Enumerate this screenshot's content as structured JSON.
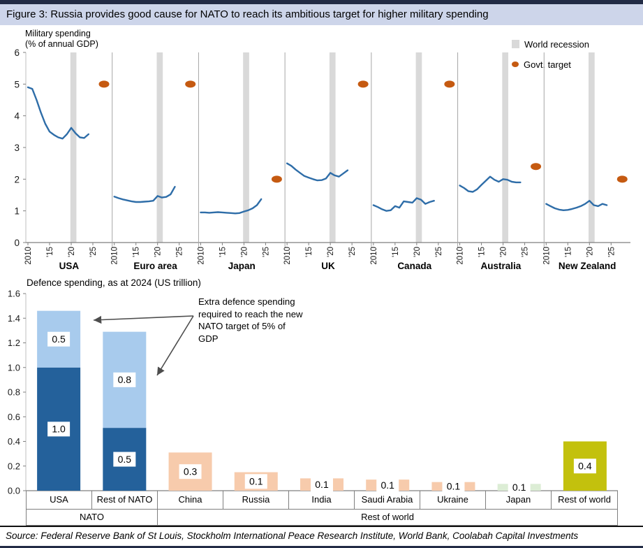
{
  "title": "Figure 3: Russia provides good cause for NATO to reach its ambitious target for higher military spending",
  "source": "Source: Federal Reserve Bank of St Louis, Stockholm International Peace Research Institute, World Bank, Coolabah Capital Investments",
  "top_chart": {
    "axis_title_line1": "Military spending",
    "axis_title_line2": "(% of annual GDP)",
    "legend_recession": "World recession",
    "legend_target": "Govt. target"
  },
  "bottom_chart": {
    "title": "Defence spending, as at 2024 (US trillion)",
    "annotation": "Extra defence spending required to reach the new NATO target of 5% of GDP"
  },
  "colors": {
    "line": "#2E6DA8",
    "recession_band": "#D9D9D9",
    "target_dot": "#C55A11",
    "dark_blue": "#24619B",
    "light_blue": "#A8CBED",
    "salmon": "#F7CBAC",
    "light_green": "#DCEDD5",
    "olive": "#C3C10D",
    "axis": "#BFBFBF",
    "axis_dark": "#7F7F7F",
    "separator": "#A6A6A6",
    "table_border": "#7F7F7F",
    "title_band_bg": "#CDD5EA",
    "navy": "#222B45",
    "arrow": "#4D4D4D",
    "text": "#1A1A1A"
  },
  "chart_data": [
    {
      "type": "line",
      "title": "Military spending (% of annual GDP)",
      "ylabel": "% of annual GDP",
      "ylim": [
        0,
        6
      ],
      "yticks": [
        0,
        1,
        2,
        3,
        4,
        5,
        6
      ],
      "x_tick_labels": [
        "2010",
        "'15",
        "'20",
        "'25"
      ],
      "x_tick_years": [
        2010,
        2015,
        2020,
        2025
      ],
      "years": [
        2010,
        2011,
        2012,
        2013,
        2014,
        2015,
        2016,
        2017,
        2018,
        2019,
        2020,
        2021,
        2022,
        2023,
        2024
      ],
      "recession_band_years": [
        2019.8,
        2021.2
      ],
      "legend": [
        "World recession",
        "Govt. target"
      ],
      "panels": [
        {
          "name": "USA",
          "govt_target": 5,
          "values": [
            4.9,
            4.85,
            4.5,
            4.1,
            3.75,
            3.5,
            3.4,
            3.32,
            3.28,
            3.42,
            3.62,
            3.45,
            3.32,
            3.3,
            3.42
          ]
        },
        {
          "name": "Euro area",
          "govt_target": 5,
          "values": [
            1.45,
            1.4,
            1.36,
            1.33,
            1.3,
            1.28,
            1.28,
            1.29,
            1.3,
            1.32,
            1.47,
            1.42,
            1.44,
            1.52,
            1.76
          ]
        },
        {
          "name": "Japan",
          "govt_target": 2,
          "values": [
            0.95,
            0.95,
            0.94,
            0.95,
            0.96,
            0.95,
            0.94,
            0.93,
            0.92,
            0.93,
            0.98,
            1.02,
            1.08,
            1.18,
            1.37
          ]
        },
        {
          "name": "UK",
          "govt_target": 5,
          "values": [
            2.5,
            2.42,
            2.3,
            2.2,
            2.1,
            2.05,
            2.0,
            1.96,
            1.97,
            2.02,
            2.2,
            2.12,
            2.08,
            2.18,
            2.28
          ]
        },
        {
          "name": "Canada",
          "govt_target": 5,
          "values": [
            1.18,
            1.12,
            1.05,
            1.0,
            1.02,
            1.15,
            1.1,
            1.3,
            1.28,
            1.26,
            1.4,
            1.35,
            1.22,
            1.28,
            1.32
          ]
        },
        {
          "name": "Australia",
          "govt_target": 2.4,
          "values": [
            1.8,
            1.72,
            1.62,
            1.6,
            1.68,
            1.82,
            1.95,
            2.08,
            1.98,
            1.92,
            2.0,
            1.98,
            1.92,
            1.9,
            1.9
          ]
        },
        {
          "name": "New Zealand",
          "govt_target": 2,
          "values": [
            1.22,
            1.15,
            1.08,
            1.04,
            1.02,
            1.03,
            1.06,
            1.1,
            1.15,
            1.22,
            1.32,
            1.18,
            1.15,
            1.22,
            1.18
          ]
        }
      ]
    },
    {
      "type": "bar",
      "title": "Defence spending, as at 2024 (US trillion)",
      "ylim": [
        0,
        1.6
      ],
      "ytick_step": 0.2,
      "annotation": "Extra defence spending required to reach the new NATO target of 5% of GDP",
      "groups": [
        {
          "label": "NATO",
          "span": 2
        },
        {
          "label": "Rest of world",
          "span": 7
        }
      ],
      "bars": [
        {
          "category": "USA",
          "segments": [
            {
              "value": 1.0,
              "label": "1.0",
              "color_key": "dark_blue"
            },
            {
              "value": 0.46,
              "label": "0.5",
              "color_key": "light_blue"
            }
          ]
        },
        {
          "category": "Rest of NATO",
          "segments": [
            {
              "value": 0.51,
              "label": "0.5",
              "color_key": "dark_blue"
            },
            {
              "value": 0.78,
              "label": "0.8",
              "color_key": "light_blue"
            }
          ]
        },
        {
          "category": "China",
          "segments": [
            {
              "value": 0.31,
              "label": "0.3",
              "color_key": "salmon"
            }
          ]
        },
        {
          "category": "Russia",
          "segments": [
            {
              "value": 0.15,
              "label": "0.1",
              "color_key": "salmon"
            }
          ]
        },
        {
          "category": "India",
          "segments": [
            {
              "value": 0.1,
              "label": "0.1",
              "color_key": "salmon"
            }
          ]
        },
        {
          "category": "Saudi Arabia",
          "segments": [
            {
              "value": 0.09,
              "label": "0.1",
              "color_key": "salmon"
            }
          ]
        },
        {
          "category": "Ukraine",
          "segments": [
            {
              "value": 0.07,
              "label": "0.1",
              "color_key": "salmon"
            }
          ]
        },
        {
          "category": "Japan",
          "segments": [
            {
              "value": 0.055,
              "label": "0.1",
              "color_key": "light_green"
            }
          ]
        },
        {
          "category": "Rest of world",
          "segments": [
            {
              "value": 0.4,
              "label": "0.4",
              "color_key": "olive"
            }
          ]
        }
      ]
    }
  ]
}
